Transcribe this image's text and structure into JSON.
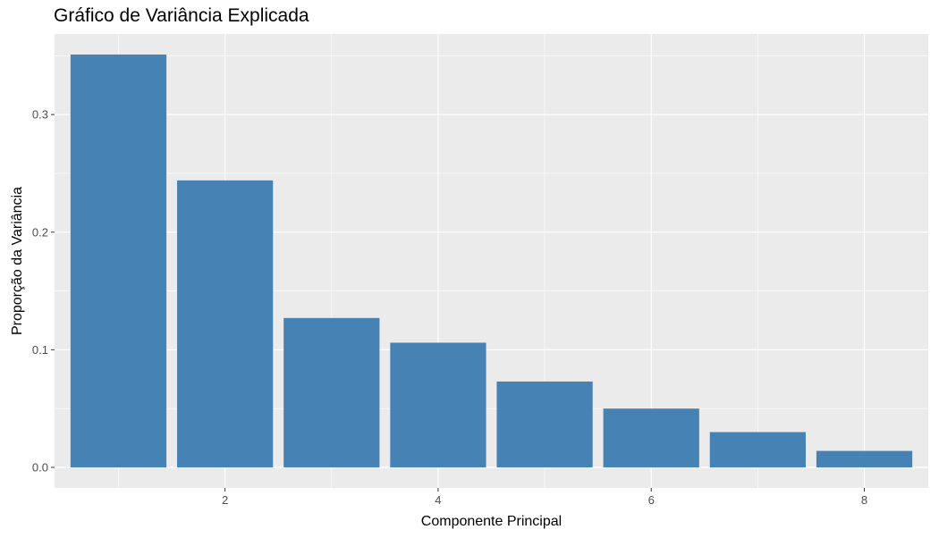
{
  "chart_data": {
    "type": "bar",
    "title": "Gráfico de Variância Explicada",
    "xlabel": "Componente Principal",
    "ylabel": "Proporção da Variância",
    "x": [
      1,
      2,
      3,
      4,
      5,
      6,
      7,
      8
    ],
    "values": [
      0.351,
      0.244,
      0.127,
      0.106,
      0.073,
      0.05,
      0.03,
      0.014
    ],
    "xlim": [
      0.4,
      8.6
    ],
    "ylim": [
      -0.0175,
      0.3685
    ],
    "x_ticks": [
      2,
      4,
      6,
      8
    ],
    "x_tick_labels": [
      "2",
      "4",
      "6",
      "8"
    ],
    "y_ticks": [
      0.0,
      0.1,
      0.2,
      0.3
    ],
    "y_tick_labels": [
      "0.0",
      "0.1",
      "0.2",
      "0.3"
    ],
    "bar_color": "#4682B4",
    "panel_background": "#EBEBEB",
    "grid_color": "#FFFFFF",
    "grid": true,
    "legend": "none"
  }
}
